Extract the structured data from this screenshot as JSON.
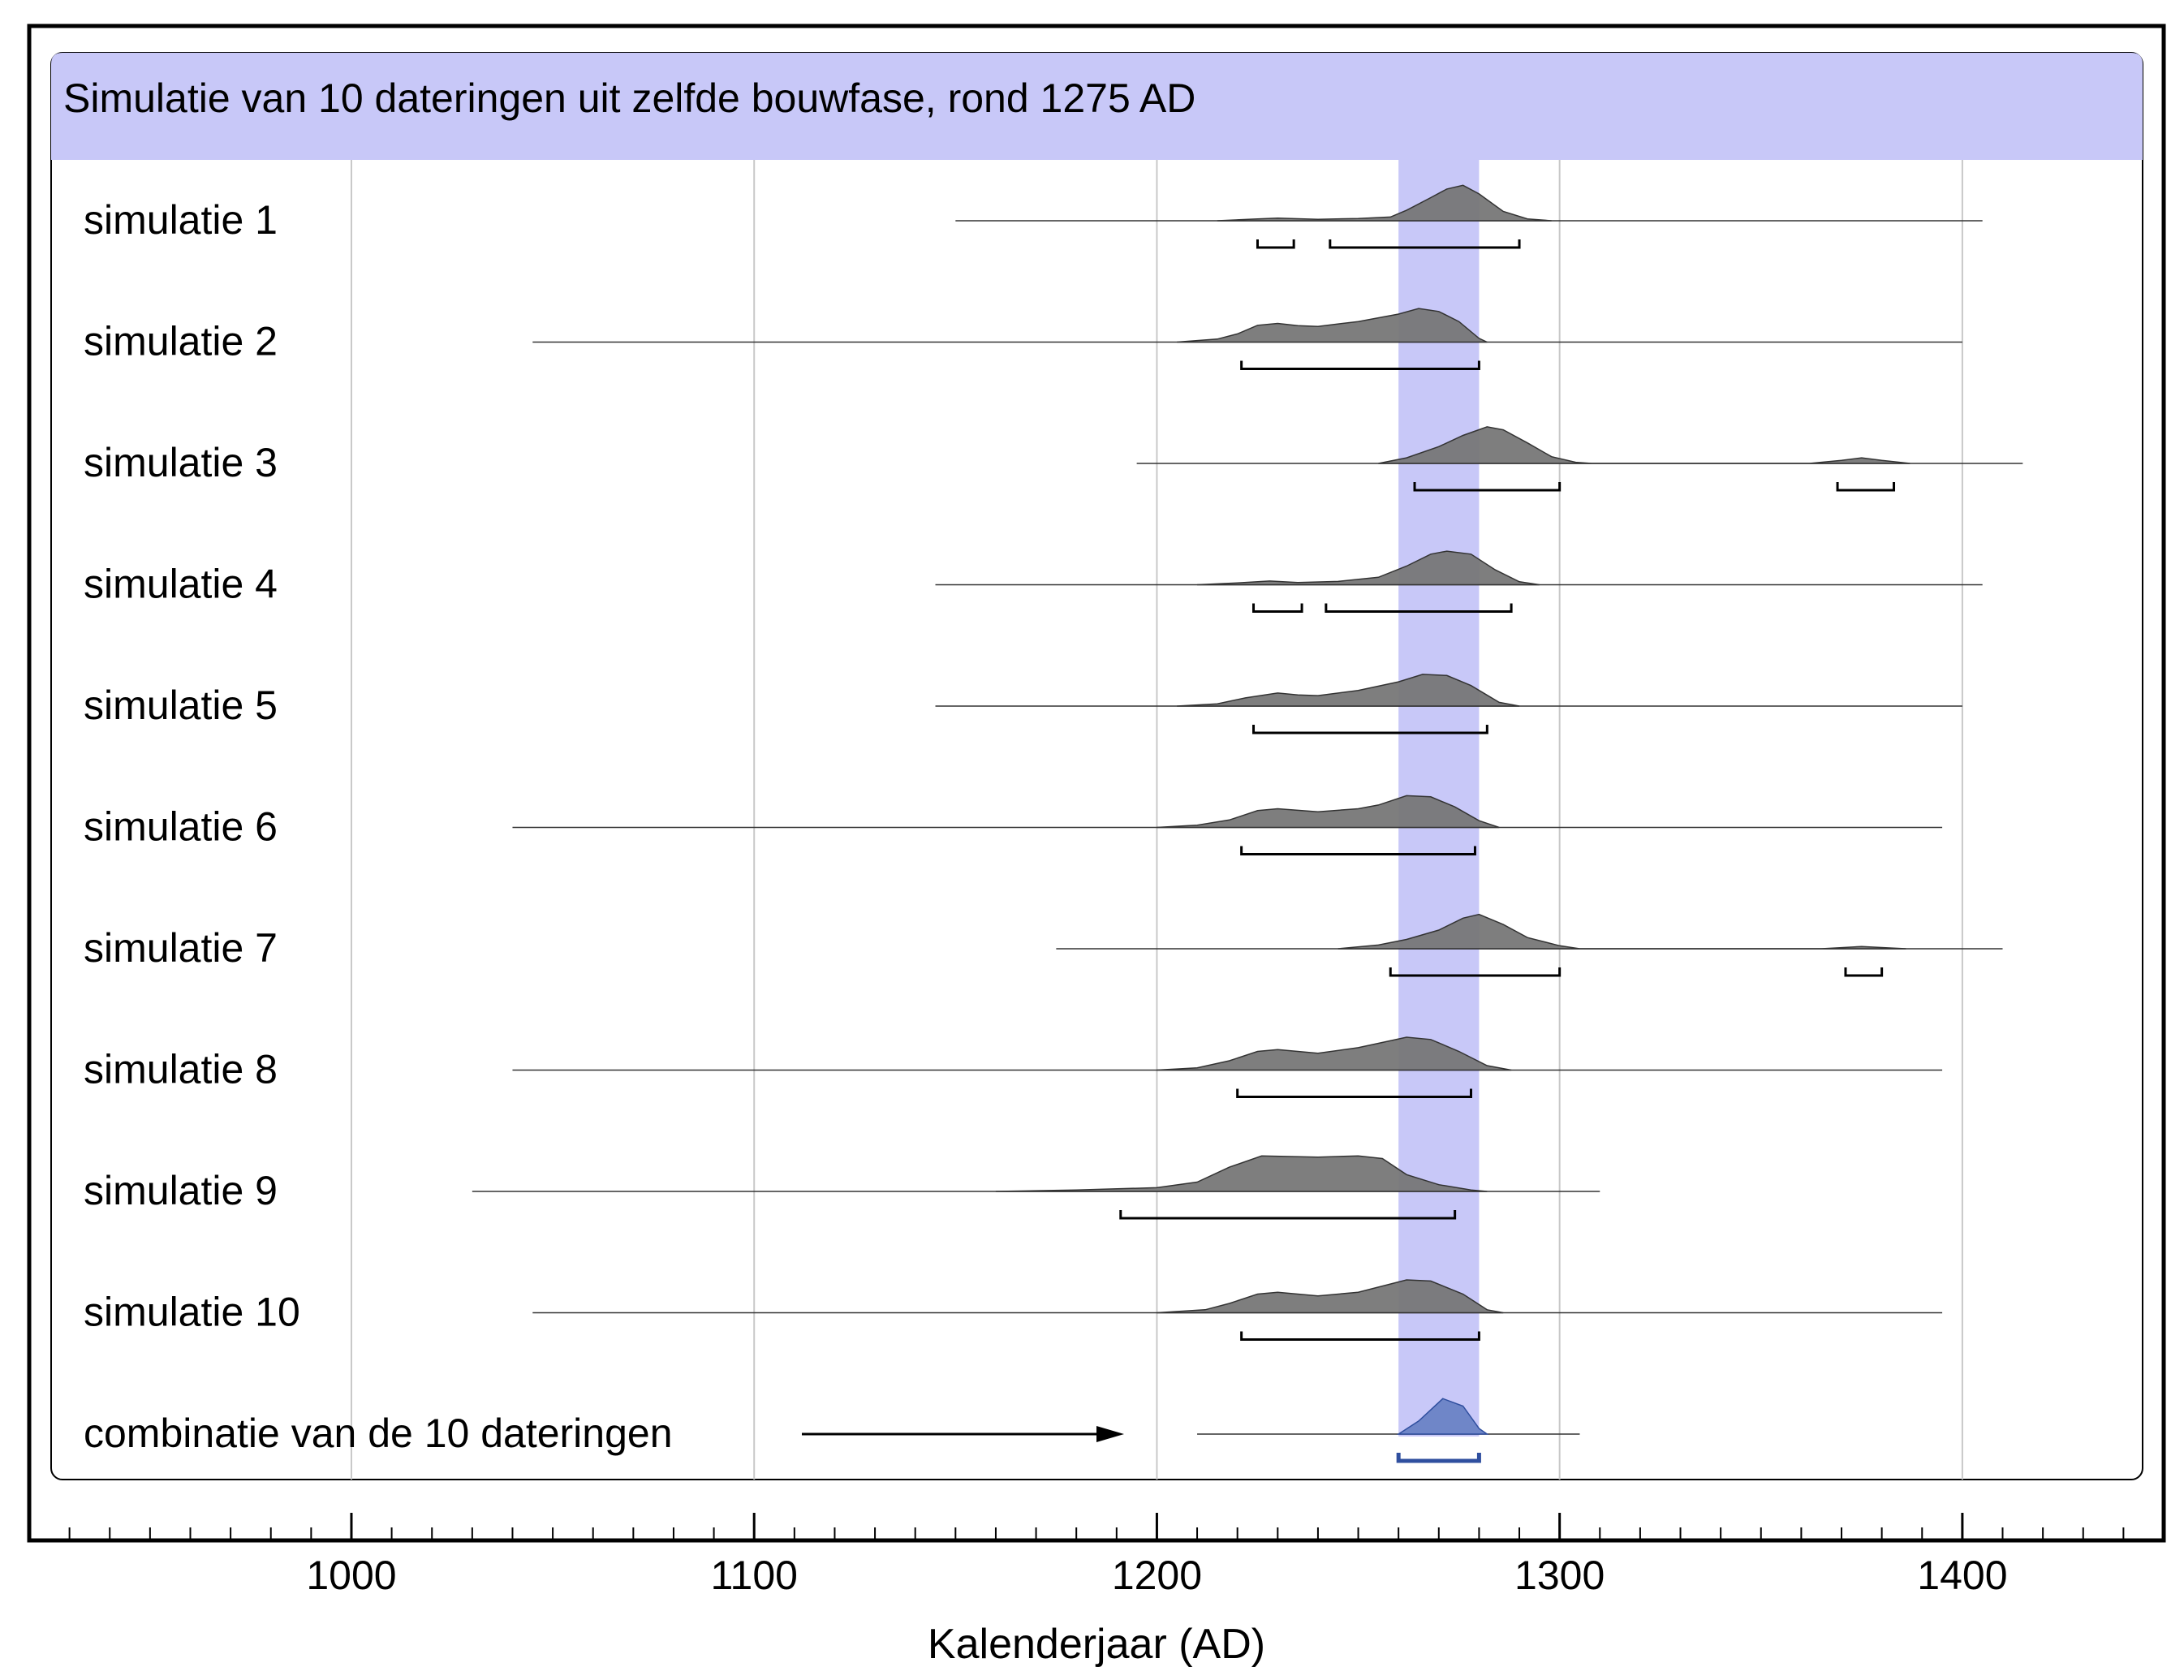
{
  "chart_data": {
    "type": "area",
    "title": "Simulatie van 10 dateringen uit zelfde bouwfase, rond 1275 AD",
    "xlabel": "Kalenderjaar (AD)",
    "ylabel": "",
    "xlim": [
      920,
      1450
    ],
    "x_ticks": [
      "1000",
      "1100",
      "1200",
      "1300",
      "1400"
    ],
    "grid": true,
    "highlight": {
      "from": 1260,
      "to": 1280,
      "color": "#c8c8f8"
    },
    "colors": {
      "header": "#c8c8f8",
      "density": "#777777",
      "combined": "#6f86c8",
      "combined_range": "#2f4f9f"
    },
    "series": [
      {
        "name": "simulatie 1",
        "baseline": [
          1150,
          1405
        ],
        "density": [
          [
            1215,
            0
          ],
          [
            1225,
            0.05
          ],
          [
            1230,
            0.07
          ],
          [
            1240,
            0.04
          ],
          [
            1250,
            0.06
          ],
          [
            1258,
            0.1
          ],
          [
            1262,
            0.28
          ],
          [
            1268,
            0.62
          ],
          [
            1272,
            0.85
          ],
          [
            1276,
            0.95
          ],
          [
            1280,
            0.72
          ],
          [
            1286,
            0.25
          ],
          [
            1292,
            0.05
          ],
          [
            1298,
            0
          ]
        ],
        "ranges": [
          [
            1225,
            1234
          ],
          [
            1243,
            1290
          ]
        ]
      },
      {
        "name": "simulatie 2",
        "baseline": [
          1045,
          1400
        ],
        "density": [
          [
            1205,
            0
          ],
          [
            1215,
            0.08
          ],
          [
            1220,
            0.22
          ],
          [
            1225,
            0.45
          ],
          [
            1230,
            0.5
          ],
          [
            1235,
            0.44
          ],
          [
            1240,
            0.42
          ],
          [
            1250,
            0.55
          ],
          [
            1260,
            0.75
          ],
          [
            1265,
            0.9
          ],
          [
            1270,
            0.82
          ],
          [
            1275,
            0.55
          ],
          [
            1280,
            0.1
          ],
          [
            1282,
            0
          ]
        ],
        "ranges": [
          [
            1221,
            1280
          ]
        ]
      },
      {
        "name": "simulatie 3",
        "baseline": [
          1195,
          1415
        ],
        "density": [
          [
            1255,
            0
          ],
          [
            1262,
            0.15
          ],
          [
            1270,
            0.45
          ],
          [
            1276,
            0.75
          ],
          [
            1282,
            0.98
          ],
          [
            1286,
            0.9
          ],
          [
            1292,
            0.55
          ],
          [
            1298,
            0.18
          ],
          [
            1304,
            0.03
          ],
          [
            1308,
            0
          ],
          [
            1362,
            0
          ],
          [
            1370,
            0.08
          ],
          [
            1375,
            0.15
          ],
          [
            1380,
            0.08
          ],
          [
            1387,
            0
          ]
        ],
        "ranges": [
          [
            1264,
            1300
          ],
          [
            1369,
            1383
          ]
        ]
      },
      {
        "name": "simulatie 4",
        "baseline": [
          1145,
          1405
        ],
        "density": [
          [
            1210,
            0
          ],
          [
            1220,
            0.05
          ],
          [
            1228,
            0.1
          ],
          [
            1235,
            0.06
          ],
          [
            1245,
            0.09
          ],
          [
            1255,
            0.2
          ],
          [
            1262,
            0.5
          ],
          [
            1268,
            0.82
          ],
          [
            1272,
            0.9
          ],
          [
            1278,
            0.82
          ],
          [
            1284,
            0.4
          ],
          [
            1290,
            0.08
          ],
          [
            1295,
            0
          ]
        ],
        "ranges": [
          [
            1224,
            1236
          ],
          [
            1242,
            1288
          ]
        ]
      },
      {
        "name": "simulatie 5",
        "baseline": [
          1145,
          1400
        ],
        "density": [
          [
            1205,
            0
          ],
          [
            1215,
            0.06
          ],
          [
            1222,
            0.22
          ],
          [
            1230,
            0.35
          ],
          [
            1235,
            0.3
          ],
          [
            1240,
            0.28
          ],
          [
            1250,
            0.42
          ],
          [
            1260,
            0.65
          ],
          [
            1266,
            0.85
          ],
          [
            1272,
            0.82
          ],
          [
            1278,
            0.55
          ],
          [
            1285,
            0.1
          ],
          [
            1290,
            0
          ]
        ],
        "ranges": [
          [
            1224,
            1282
          ]
        ]
      },
      {
        "name": "simulatie 6",
        "baseline": [
          1040,
          1395
        ],
        "density": [
          [
            1200,
            0
          ],
          [
            1210,
            0.06
          ],
          [
            1218,
            0.2
          ],
          [
            1225,
            0.45
          ],
          [
            1230,
            0.5
          ],
          [
            1240,
            0.42
          ],
          [
            1250,
            0.5
          ],
          [
            1255,
            0.6
          ],
          [
            1262,
            0.85
          ],
          [
            1268,
            0.82
          ],
          [
            1274,
            0.55
          ],
          [
            1280,
            0.18
          ],
          [
            1285,
            0
          ]
        ],
        "ranges": [
          [
            1221,
            1279
          ]
        ]
      },
      {
        "name": "simulatie 7",
        "baseline": [
          1175,
          1410
        ],
        "density": [
          [
            1245,
            0
          ],
          [
            1255,
            0.1
          ],
          [
            1262,
            0.25
          ],
          [
            1270,
            0.5
          ],
          [
            1276,
            0.82
          ],
          [
            1280,
            0.92
          ],
          [
            1286,
            0.65
          ],
          [
            1292,
            0.3
          ],
          [
            1300,
            0.08
          ],
          [
            1305,
            0
          ],
          [
            1365,
            0
          ],
          [
            1375,
            0.06
          ],
          [
            1386,
            0
          ]
        ],
        "ranges": [
          [
            1258,
            1300
          ],
          [
            1371,
            1380
          ]
        ]
      },
      {
        "name": "simulatie 8",
        "baseline": [
          1040,
          1395
        ],
        "density": [
          [
            1200,
            0
          ],
          [
            1210,
            0.06
          ],
          [
            1218,
            0.25
          ],
          [
            1225,
            0.5
          ],
          [
            1230,
            0.55
          ],
          [
            1240,
            0.45
          ],
          [
            1250,
            0.6
          ],
          [
            1262,
            0.88
          ],
          [
            1268,
            0.82
          ],
          [
            1275,
            0.5
          ],
          [
            1282,
            0.12
          ],
          [
            1288,
            0
          ]
        ],
        "ranges": [
          [
            1220,
            1278
          ]
        ]
      },
      {
        "name": "simulatie 9",
        "baseline": [
          1030,
          1310
        ],
        "density": [
          [
            1160,
            0
          ],
          [
            1180,
            0.04
          ],
          [
            1200,
            0.1
          ],
          [
            1210,
            0.25
          ],
          [
            1218,
            0.65
          ],
          [
            1226,
            0.95
          ],
          [
            1240,
            0.92
          ],
          [
            1250,
            0.95
          ],
          [
            1256,
            0.88
          ],
          [
            1262,
            0.45
          ],
          [
            1270,
            0.18
          ],
          [
            1278,
            0.04
          ],
          [
            1282,
            0
          ]
        ],
        "ranges": [
          [
            1191,
            1274
          ]
        ]
      },
      {
        "name": "simulatie 10",
        "baseline": [
          1045,
          1395
        ],
        "density": [
          [
            1200,
            0
          ],
          [
            1212,
            0.08
          ],
          [
            1218,
            0.25
          ],
          [
            1225,
            0.5
          ],
          [
            1230,
            0.55
          ],
          [
            1240,
            0.45
          ],
          [
            1250,
            0.55
          ],
          [
            1262,
            0.88
          ],
          [
            1268,
            0.85
          ],
          [
            1276,
            0.5
          ],
          [
            1282,
            0.08
          ],
          [
            1286,
            0
          ]
        ],
        "ranges": [
          [
            1221,
            1280
          ]
        ]
      },
      {
        "name": "combinatie van de 10 dateringen",
        "baseline": [
          1210,
          1305
        ],
        "density": [
          [
            1260,
            0
          ],
          [
            1265,
            0.35
          ],
          [
            1271,
            0.95
          ],
          [
            1276,
            0.75
          ],
          [
            1280,
            0.15
          ],
          [
            1282,
            0
          ]
        ],
        "ranges": [
          [
            1260,
            1280
          ]
        ],
        "arrow": true
      }
    ]
  }
}
